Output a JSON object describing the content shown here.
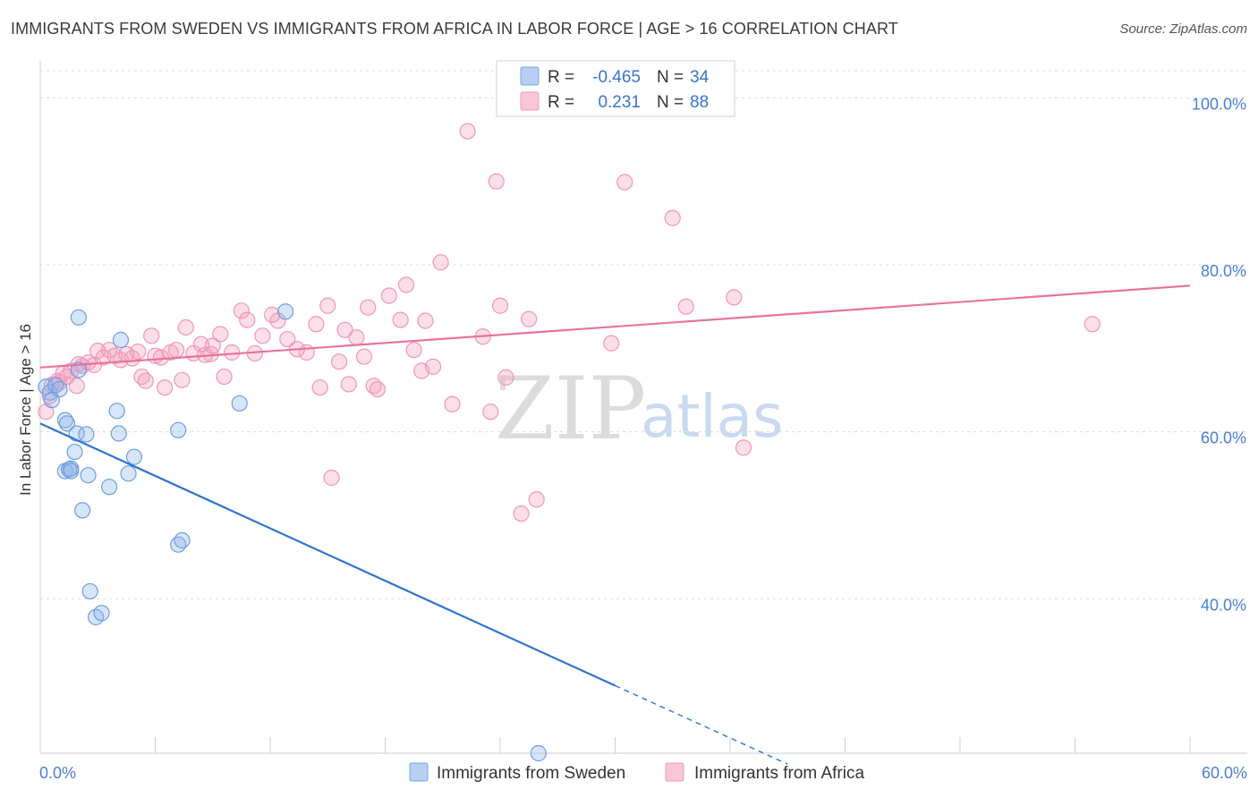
{
  "title": "IMMIGRANTS FROM SWEDEN VS IMMIGRANTS FROM AFRICA IN LABOR FORCE | AGE > 16 CORRELATION CHART",
  "source": "Source: ZipAtlas.com",
  "watermark": {
    "zip": "ZIP",
    "atlas": "atlas"
  },
  "legend": {
    "sweden": {
      "r_label": "R =",
      "r_value": "-0.465",
      "n_label": "N =",
      "n_value": "34"
    },
    "africa": {
      "r_label": "R =",
      "r_value": "0.231",
      "n_label": "N =",
      "n_value": "88"
    }
  },
  "bottom_legend": {
    "sweden": "Immigrants from Sweden",
    "africa": "Immigrants from Africa"
  },
  "chart_data": {
    "type": "scatter",
    "title": "IMMIGRANTS FROM SWEDEN VS IMMIGRANTS FROM AFRICA IN LABOR FORCE | AGE > 16 CORRELATION CHART",
    "xlabel": "",
    "ylabel": "In Labor Force | Age > 16",
    "xlim": [
      0,
      60
    ],
    "ylim": [
      21.5,
      104
    ],
    "x_tick_labels": [
      "0.0%",
      "60.0%"
    ],
    "y_ticks": [
      40,
      60,
      80,
      100
    ],
    "y_tick_labels": [
      "40.0%",
      "60.0%",
      "80.0%",
      "100.0%"
    ],
    "grid": true,
    "legend_position": "top-center",
    "colors": {
      "sweden": "#6fa0e0",
      "africa": "#f08cb0",
      "sweden_line": "#2f74d0",
      "africa_line": "#e8739c"
    },
    "series": [
      {
        "name": "Immigrants from Sweden",
        "stats": {
          "R": -0.465,
          "N": 34
        },
        "points": [
          [
            0.3,
            65.4
          ],
          [
            0.5,
            64.7
          ],
          [
            0.6,
            63.8
          ],
          [
            0.8,
            65.6
          ],
          [
            1.0,
            65.1
          ],
          [
            1.3,
            55.3
          ],
          [
            1.5,
            55.5
          ],
          [
            1.6,
            55.6
          ],
          [
            1.3,
            61.4
          ],
          [
            1.4,
            61.0
          ],
          [
            1.8,
            57.6
          ],
          [
            1.9,
            59.8
          ],
          [
            1.6,
            55.3
          ],
          [
            2.0,
            67.4
          ],
          [
            2.0,
            73.7
          ],
          [
            2.2,
            50.6
          ],
          [
            2.4,
            59.7
          ],
          [
            2.5,
            54.8
          ],
          [
            2.6,
            40.9
          ],
          [
            2.9,
            37.8
          ],
          [
            3.2,
            38.3
          ],
          [
            3.6,
            53.4
          ],
          [
            4.0,
            62.5
          ],
          [
            4.1,
            59.8
          ],
          [
            4.2,
            71.0
          ],
          [
            4.6,
            55.0
          ],
          [
            4.9,
            57.0
          ],
          [
            7.2,
            46.5
          ],
          [
            7.4,
            47.0
          ],
          [
            7.2,
            60.2
          ],
          [
            10.4,
            63.4
          ],
          [
            12.8,
            74.4
          ],
          [
            26.0,
            21.5
          ]
        ],
        "trend": {
          "x": [
            0,
            30
          ],
          "y": [
            61.0,
            29.6
          ],
          "dashed_extension": {
            "x": [
              30,
              39
            ],
            "y": [
              29.6,
              20.2
            ]
          }
        }
      },
      {
        "name": "Immigrants from Africa",
        "stats": {
          "R": 0.231,
          "N": 88
        },
        "points": [
          [
            0.3,
            62.4
          ],
          [
            0.5,
            64.3
          ],
          [
            0.6,
            65.6
          ],
          [
            0.9,
            66.1
          ],
          [
            1.0,
            65.9
          ],
          [
            1.2,
            67.0
          ],
          [
            1.4,
            66.6
          ],
          [
            1.6,
            67.3
          ],
          [
            1.9,
            65.5
          ],
          [
            2.0,
            68.1
          ],
          [
            2.2,
            67.9
          ],
          [
            2.5,
            68.3
          ],
          [
            2.8,
            68.0
          ],
          [
            3.0,
            69.7
          ],
          [
            3.3,
            68.9
          ],
          [
            3.6,
            69.8
          ],
          [
            3.9,
            69.1
          ],
          [
            4.2,
            68.6
          ],
          [
            4.5,
            69.3
          ],
          [
            4.8,
            68.8
          ],
          [
            5.1,
            69.6
          ],
          [
            5.3,
            66.6
          ],
          [
            5.5,
            66.1
          ],
          [
            5.8,
            71.5
          ],
          [
            6.0,
            69.1
          ],
          [
            6.3,
            68.9
          ],
          [
            6.5,
            65.3
          ],
          [
            6.8,
            69.5
          ],
          [
            7.1,
            69.8
          ],
          [
            7.4,
            66.2
          ],
          [
            7.6,
            72.5
          ],
          [
            8.0,
            69.4
          ],
          [
            8.4,
            70.5
          ],
          [
            8.6,
            69.2
          ],
          [
            8.9,
            69.3
          ],
          [
            9.0,
            70.3
          ],
          [
            9.4,
            71.7
          ],
          [
            9.6,
            66.6
          ],
          [
            10.0,
            69.5
          ],
          [
            10.5,
            74.5
          ],
          [
            10.8,
            73.4
          ],
          [
            11.2,
            69.4
          ],
          [
            11.6,
            71.5
          ],
          [
            12.1,
            74.0
          ],
          [
            12.4,
            73.3
          ],
          [
            12.9,
            71.1
          ],
          [
            13.4,
            69.9
          ],
          [
            13.9,
            69.5
          ],
          [
            14.4,
            72.9
          ],
          [
            14.6,
            65.3
          ],
          [
            15.0,
            75.1
          ],
          [
            15.2,
            54.5
          ],
          [
            15.6,
            68.4
          ],
          [
            15.9,
            72.2
          ],
          [
            16.1,
            65.7
          ],
          [
            16.5,
            71.3
          ],
          [
            16.9,
            69.0
          ],
          [
            17.1,
            74.9
          ],
          [
            17.4,
            65.5
          ],
          [
            17.6,
            65.1
          ],
          [
            18.2,
            76.3
          ],
          [
            18.8,
            73.4
          ],
          [
            19.1,
            77.6
          ],
          [
            19.5,
            69.8
          ],
          [
            19.9,
            67.3
          ],
          [
            20.1,
            73.3
          ],
          [
            20.5,
            67.8
          ],
          [
            20.9,
            80.3
          ],
          [
            21.5,
            63.3
          ],
          [
            22.3,
            96.0
          ],
          [
            23.1,
            71.4
          ],
          [
            23.5,
            62.4
          ],
          [
            23.8,
            90.0
          ],
          [
            24.0,
            75.1
          ],
          [
            24.3,
            66.5
          ],
          [
            25.1,
            50.2
          ],
          [
            25.5,
            73.5
          ],
          [
            25.9,
            51.9
          ],
          [
            29.8,
            70.6
          ],
          [
            30.5,
            89.9
          ],
          [
            33.0,
            85.6
          ],
          [
            33.7,
            75.0
          ],
          [
            36.2,
            76.1
          ],
          [
            36.7,
            58.1
          ],
          [
            54.9,
            72.9
          ]
        ],
        "trend": {
          "x": [
            0,
            60
          ],
          "y": [
            67.7,
            77.5
          ]
        }
      }
    ]
  }
}
